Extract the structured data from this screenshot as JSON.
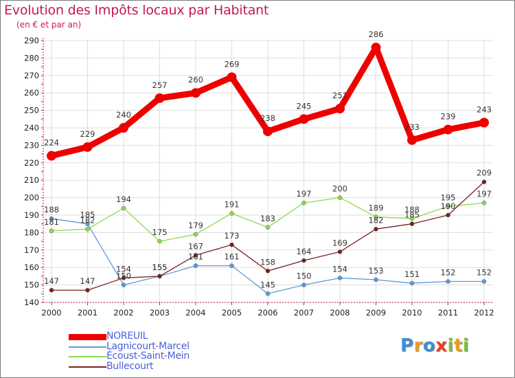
{
  "title": "Evolution des Impôts locaux par Habitant",
  "subtitle": "(en € et par an)",
  "brand": "Proxiti",
  "brand_letters": [
    {
      "ch": "P",
      "color": "#3a8fd6"
    },
    {
      "ch": "r",
      "color": "#e8a01c"
    },
    {
      "ch": "o",
      "color": "#3a8fd6"
    },
    {
      "ch": "x",
      "color": "#e83d2a"
    },
    {
      "ch": "i",
      "color": "#7bbf3a"
    },
    {
      "ch": "t",
      "color": "#e8a01c"
    },
    {
      "ch": "i",
      "color": "#7bbf3a"
    }
  ],
  "chart_data": {
    "type": "line",
    "title": "Evolution des Impôts locaux par Habitant",
    "ylabel": "(en € et par an)",
    "xlabel": "",
    "categories": [
      "2000",
      "2001",
      "2002",
      "2003",
      "2004",
      "2005",
      "2006",
      "2007",
      "2008",
      "2009",
      "2010",
      "2011",
      "2012"
    ],
    "ylim": [
      140,
      290
    ],
    "yticks": [
      140,
      150,
      160,
      170,
      180,
      190,
      200,
      210,
      220,
      230,
      240,
      250,
      260,
      270,
      280,
      290
    ],
    "grid": true,
    "legend_position": "bottom-left",
    "series": [
      {
        "name": "NOREUIL",
        "color": "#ee0000",
        "line_width": 9,
        "marker_size": 7,
        "values": [
          224,
          229,
          240,
          257,
          260,
          269,
          238,
          245,
          251,
          286,
          233,
          239,
          243
        ],
        "labels": [
          "224",
          "229",
          "240",
          "257",
          "260",
          "269",
          "238",
          "245",
          "251",
          "286",
          "233",
          "239",
          "243"
        ]
      },
      {
        "name": "Lagnicourt-Marcel",
        "color": "#5b9bd5",
        "line_width": 1.3,
        "marker_size": 3,
        "values": [
          188,
          185,
          150,
          155,
          161,
          161,
          145,
          150,
          154,
          153,
          151,
          152,
          152
        ],
        "labels": [
          "188",
          "185",
          "150",
          "155",
          "161",
          "161",
          "145",
          "150",
          "154",
          "153",
          "151",
          "152",
          "152"
        ]
      },
      {
        "name": "Écoust-Saint-Mein",
        "color": "#8ed94f",
        "line_width": 1.3,
        "marker_size": 3,
        "values": [
          181,
          182,
          194,
          175,
          179,
          191,
          183,
          197,
          200,
          189,
          188,
          195,
          197
        ],
        "labels": [
          "181",
          "182",
          "194",
          "175",
          "179",
          "191",
          "183",
          "197",
          "200",
          "189",
          "188",
          "195",
          "197"
        ]
      },
      {
        "name": "Bullecourt",
        "color": "#7a1f1f",
        "line_width": 1.3,
        "marker_size": 3,
        "values": [
          147,
          147,
          154,
          155,
          167,
          173,
          158,
          164,
          169,
          182,
          185,
          190,
          209
        ],
        "labels": [
          "147",
          "147",
          "154",
          "155",
          "167",
          "173",
          "158",
          "164",
          "169",
          "182",
          "185",
          "190",
          "209"
        ]
      }
    ]
  }
}
